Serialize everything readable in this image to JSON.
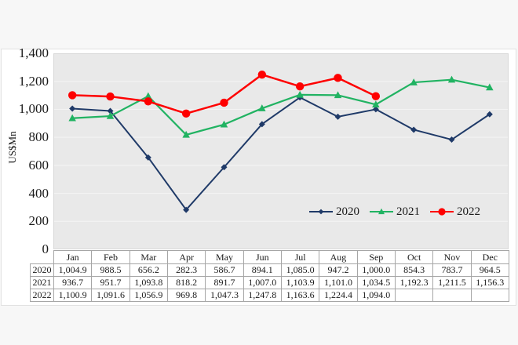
{
  "chart_data": {
    "type": "line",
    "categories": [
      "Jan",
      "Feb",
      "Mar",
      "Apr",
      "May",
      "Jun",
      "Jul",
      "Aug",
      "Sep",
      "Oct",
      "Nov",
      "Dec"
    ],
    "series": [
      {
        "name": "2020",
        "color": "#1f3a68",
        "marker": "diamond",
        "values": [
          1004.9,
          988.5,
          656.2,
          282.3,
          586.7,
          894.1,
          1085.0,
          947.2,
          1000.0,
          854.3,
          783.7,
          964.5
        ]
      },
      {
        "name": "2021",
        "color": "#21b362",
        "marker": "triangle",
        "values": [
          936.7,
          951.7,
          1093.8,
          818.2,
          891.7,
          1007.0,
          1103.9,
          1101.0,
          1034.5,
          1192.3,
          1211.5,
          1156.3
        ]
      },
      {
        "name": "2022",
        "color": "#fe0000",
        "marker": "circle",
        "values": [
          1100.9,
          1091.6,
          1056.9,
          969.8,
          1047.3,
          1247.8,
          1163.6,
          1224.4,
          1094.0,
          null,
          null,
          null
        ]
      }
    ],
    "title": "",
    "xlabel": "",
    "ylabel": "US$Mn",
    "ylim": [
      0,
      1400
    ],
    "ytick_step": 200,
    "y_tick_labels": [
      "1,400",
      "1,200",
      "1,000",
      "800",
      "600",
      "400",
      "200",
      "0"
    ],
    "grid": true,
    "legend_position": "inside-bottom-right",
    "plot_bg": "#e9e9e9",
    "gridline_color": "#f5f5f5"
  },
  "table": {
    "corner_label": "",
    "columns": [
      "Jan",
      "Feb",
      "Mar",
      "Apr",
      "May",
      "Jun",
      "Jul",
      "Aug",
      "Sep",
      "Oct",
      "Nov",
      "Dec"
    ],
    "rows": [
      {
        "label": "2020",
        "cells": [
          "1,004.9",
          "988.5",
          "656.2",
          "282.3",
          "586.7",
          "894.1",
          "1,085.0",
          "947.2",
          "1,000.0",
          "854.3",
          "783.7",
          "964.5"
        ]
      },
      {
        "label": "2021",
        "cells": [
          "936.7",
          "951.7",
          "1,093.8",
          "818.2",
          "891.7",
          "1,007.0",
          "1,103.9",
          "1,101.0",
          "1,034.5",
          "1,192.3",
          "1,211.5",
          "1,156.3"
        ]
      },
      {
        "label": "2022",
        "cells": [
          "1,100.9",
          "1,091.6",
          "1,056.9",
          "969.8",
          "1,047.3",
          "1,247.8",
          "1,163.6",
          "1,224.4",
          "1,094.0",
          "",
          "",
          ""
        ]
      }
    ]
  }
}
